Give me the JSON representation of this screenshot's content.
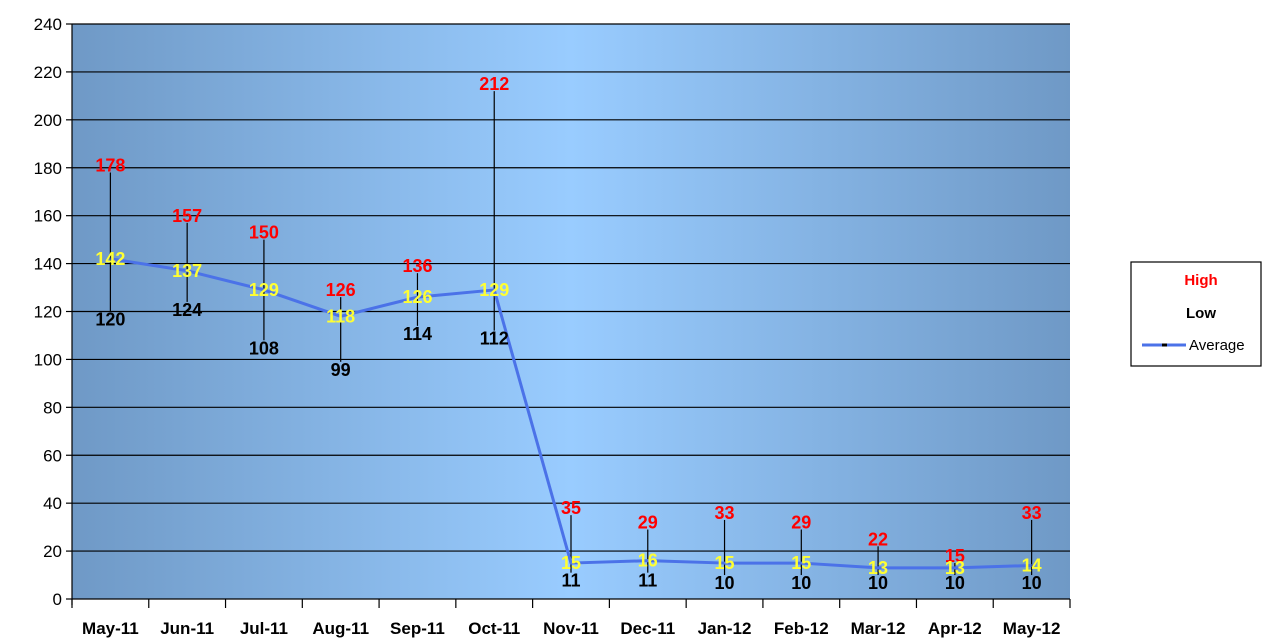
{
  "chart_data": {
    "type": "line",
    "categories": [
      "May-11",
      "Jun-11",
      "Jul-11",
      "Aug-11",
      "Sep-11",
      "Oct-11",
      "Nov-11",
      "Dec-11",
      "Jan-12",
      "Feb-12",
      "Mar-12",
      "Apr-12",
      "May-12"
    ],
    "series": [
      {
        "name": "High",
        "values": [
          178,
          157,
          150,
          126,
          136,
          212,
          35,
          29,
          33,
          29,
          22,
          15,
          33
        ],
        "color": "#ff0000"
      },
      {
        "name": "Low",
        "values": [
          120,
          124,
          108,
          99,
          114,
          112,
          11,
          11,
          10,
          10,
          10,
          10,
          10
        ],
        "color": "#000000"
      },
      {
        "name": "Average",
        "values": [
          142,
          137,
          129,
          118,
          126,
          129,
          15,
          16,
          15,
          15,
          13,
          13,
          14
        ],
        "color": "#4b72e8",
        "label_color": "#ffff33"
      }
    ],
    "ylim": [
      0,
      240
    ],
    "yticks": [
      0,
      20,
      40,
      60,
      80,
      100,
      120,
      140,
      160,
      180,
      200,
      220,
      240
    ],
    "grid": true,
    "legend_position": "right",
    "plot_gradient": {
      "edge": "#6f99c6",
      "center": "#99ccff"
    }
  }
}
